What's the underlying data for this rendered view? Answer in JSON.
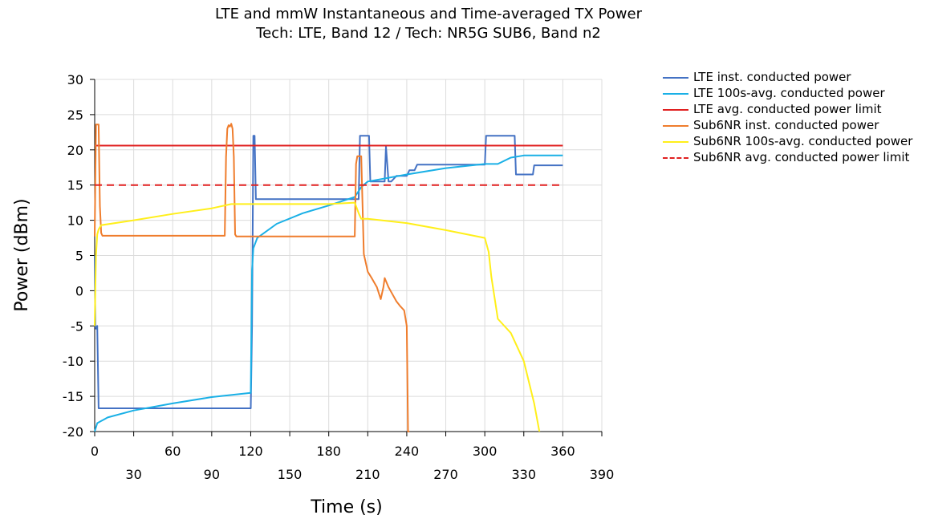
{
  "chart_data": {
    "type": "line",
    "title": "LTE and mmW Instantaneous and Time-averaged TX Power",
    "subtitle": "Tech: LTE, Band 12 / Tech: NR5G SUB6, Band n2",
    "xlabel": "Time (s)",
    "ylabel": "Power (dBm)",
    "xlim": [
      0,
      390
    ],
    "ylim": [
      -20,
      30
    ],
    "xticks_major": [
      0,
      60,
      120,
      180,
      240,
      300,
      360
    ],
    "xticks_minor": [
      30,
      90,
      150,
      210,
      270,
      330,
      390
    ],
    "yticks": [
      30,
      25,
      20,
      15,
      10,
      5,
      0,
      -5,
      -10,
      -15,
      -20
    ],
    "grid": true,
    "legend_position": "right",
    "series": [
      {
        "name": "LTE inst. conducted power",
        "color": "#4472c4",
        "style": "solid",
        "x": [
          0,
          0.5,
          1,
          2,
          3,
          4,
          120,
          121,
          122,
          123,
          124,
          127,
          203,
          204,
          211,
          212,
          223,
          224,
          226,
          228,
          232,
          240,
          242,
          246,
          248,
          300,
          301,
          323,
          324,
          337,
          338,
          360
        ],
        "y": [
          5,
          -5,
          -5.4,
          -5,
          -16.7,
          -16.7,
          -16.7,
          -5,
          22,
          22,
          13,
          13,
          13,
          22,
          22,
          15.5,
          15.5,
          20.5,
          15.5,
          15.5,
          16.3,
          16.3,
          17.1,
          17.1,
          17.9,
          17.9,
          22,
          22,
          16.5,
          16.5,
          17.8,
          17.8
        ]
      },
      {
        "name": "LTE 100s-avg. conducted power",
        "color": "#1ab0e6",
        "style": "solid",
        "x": [
          0,
          2,
          10,
          30,
          60,
          90,
          120,
          121,
          122,
          125,
          140,
          160,
          180,
          200,
          205,
          210,
          240,
          270,
          300,
          310,
          320,
          330,
          360
        ],
        "y": [
          -20,
          -18.8,
          -18,
          -17,
          -16,
          -15.1,
          -14.5,
          3,
          6,
          7.5,
          9.5,
          11,
          12.1,
          13.3,
          14.7,
          15.5,
          16.5,
          17.4,
          18,
          18,
          18.9,
          19.2,
          19.2
        ]
      },
      {
        "name": "LTE avg. conducted power limit",
        "color": "#e02020",
        "style": "solid",
        "x": [
          0,
          360
        ],
        "y": [
          20.6,
          20.6
        ]
      },
      {
        "name": "Sub6NR inst. conducted power",
        "color": "#ef7d2d",
        "style": "solid",
        "x": [
          0,
          1,
          3,
          4,
          5,
          6,
          8,
          100,
          101,
          102,
          103,
          104,
          105,
          106,
          107,
          108,
          109,
          200,
          201,
          202,
          205,
          207,
          210,
          213,
          217,
          220,
          222,
          223,
          226,
          229,
          232,
          235,
          238,
          240,
          241,
          242
        ],
        "y": [
          7.7,
          23.6,
          23.6,
          12,
          8.2,
          7.8,
          7.8,
          7.8,
          19,
          23,
          23.5,
          23.3,
          23.7,
          23,
          19,
          8,
          7.7,
          7.7,
          18,
          19.1,
          19.1,
          5.2,
          2.7,
          1.8,
          0.5,
          -1.2,
          0.5,
          1.8,
          0.5,
          -0.5,
          -1.5,
          -2.2,
          -2.8,
          -5,
          -20,
          -20
        ]
      },
      {
        "name": "Sub6NR 100s-avg. conducted power",
        "color": "#ffef1a",
        "style": "solid",
        "x": [
          0,
          1,
          2,
          3,
          5,
          30,
          60,
          90,
          105,
          120,
          150,
          180,
          200,
          203,
          205,
          210,
          240,
          270,
          300,
          303,
          305,
          310,
          320,
          330,
          338,
          342
        ],
        "y": [
          -5,
          5,
          8,
          8.7,
          9.3,
          10,
          10.9,
          11.7,
          12.3,
          12.3,
          12.3,
          12.3,
          12.5,
          11,
          10.2,
          10.2,
          9.6,
          8.6,
          7.5,
          5.5,
          2,
          -4,
          -6,
          -10,
          -16,
          -20
        ]
      },
      {
        "name": "Sub6NR avg. conducted power limit",
        "color": "#e02020",
        "style": "dashed",
        "x": [
          0,
          360
        ],
        "y": [
          15,
          15
        ]
      }
    ]
  }
}
